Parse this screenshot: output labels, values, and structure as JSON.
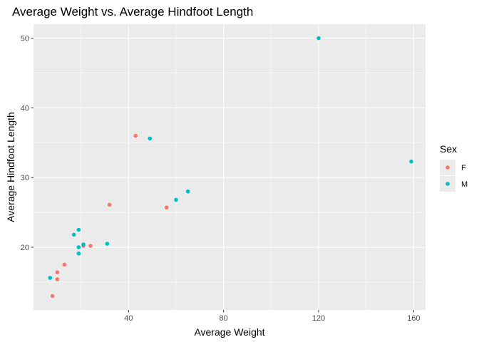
{
  "chart_data": {
    "type": "scatter",
    "title": "Average Weight vs. Average Hindfoot Length",
    "xlabel": "Average Weight",
    "ylabel": "Average Hindfoot Length",
    "xlim": [
      0,
      165
    ],
    "ylim": [
      11,
      52
    ],
    "x_ticks": [
      40,
      80,
      120,
      160
    ],
    "y_ticks": [
      20,
      30,
      40,
      50
    ],
    "grid": true,
    "legend_title": "Sex",
    "legend_position": "right",
    "series": [
      {
        "name": "F",
        "color": "#F8766D",
        "points": [
          [
            8,
            13.0
          ],
          [
            10,
            15.4
          ],
          [
            10,
            16.4
          ],
          [
            13,
            17.5
          ],
          [
            21,
            20.2
          ],
          [
            24,
            20.2
          ],
          [
            32,
            26.1
          ],
          [
            43,
            36.0
          ],
          [
            56,
            25.7
          ]
        ]
      },
      {
        "name": "M",
        "color": "#00BFC4",
        "points": [
          [
            7,
            15.6
          ],
          [
            17,
            21.8
          ],
          [
            19,
            22.5
          ],
          [
            19,
            20.0
          ],
          [
            19,
            19.1
          ],
          [
            21,
            20.4
          ],
          [
            31,
            20.5
          ],
          [
            49,
            35.6
          ],
          [
            60,
            26.8
          ],
          [
            65,
            28.0
          ],
          [
            120,
            50.0
          ],
          [
            159,
            32.3
          ]
        ]
      }
    ]
  }
}
